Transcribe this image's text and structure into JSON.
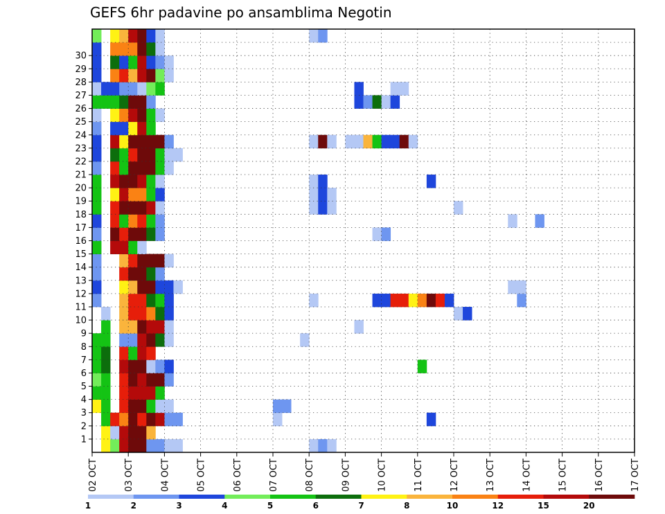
{
  "chart_data": {
    "type": "heatmap",
    "title": "GEFS 6hr padavine po ansamblima Negotin",
    "x_tick_labels": [
      "02 OCT",
      "03 OCT",
      "04 OCT",
      "05 OCT",
      "06 OCT",
      "07 OCT",
      "08 OCT",
      "09 OCT",
      "10 OCT",
      "11 OCT",
      "12 OCT",
      "13 OCT",
      "14 OCT",
      "15 OCT",
      "16 OCT",
      "17 OCT"
    ],
    "y_tick_labels": [
      "1",
      "2",
      "3",
      "4",
      "5",
      "6",
      "7",
      "8",
      "9",
      "10",
      "11",
      "12",
      "13",
      "14",
      "15",
      "16",
      "17",
      "18",
      "19",
      "20",
      "21",
      "22",
      "23",
      "24",
      "25",
      "26",
      "27",
      "28",
      "29",
      "30"
    ],
    "x_unit": "6-hour step from 02 OCT 00Z",
    "y_unit": "ensemble member",
    "grid": true,
    "colorbar": {
      "labels": [
        "1",
        "2",
        "3",
        "4",
        "5",
        "6",
        "7",
        "8",
        "10",
        "12",
        "15",
        "20"
      ],
      "colors": [
        "#b4c8f5",
        "#6e96f0",
        "#1e46dc",
        "#73ed5a",
        "#14c314",
        "#0c6e0c",
        "#fff214",
        "#fab43c",
        "#fa8214",
        "#e61e0a",
        "#b40a0a",
        "#6e0a0a"
      ]
    },
    "cells": [
      [
        0,
        1,
        6
      ],
      [
        0,
        2,
        3
      ],
      [
        0,
        3,
        10
      ],
      [
        0,
        4,
        11
      ],
      [
        0,
        5,
        11
      ],
      [
        0,
        6,
        1
      ],
      [
        0,
        7,
        1
      ],
      [
        0,
        8,
        0
      ],
      [
        0,
        9,
        0
      ],
      [
        0,
        24,
        0
      ],
      [
        0,
        25,
        1
      ],
      [
        0,
        26,
        0
      ],
      [
        1,
        1,
        6
      ],
      [
        1,
        2,
        0
      ],
      [
        1,
        3,
        10
      ],
      [
        1,
        4,
        11
      ],
      [
        1,
        5,
        11
      ],
      [
        1,
        6,
        7
      ],
      [
        2,
        1,
        4
      ],
      [
        2,
        2,
        9
      ],
      [
        2,
        3,
        8
      ],
      [
        2,
        4,
        11
      ],
      [
        2,
        5,
        9
      ],
      [
        2,
        6,
        11
      ],
      [
        2,
        7,
        10
      ],
      [
        2,
        8,
        1
      ],
      [
        2,
        9,
        1
      ],
      [
        2,
        20,
        0
      ],
      [
        2,
        37,
        2
      ],
      [
        3,
        0,
        6
      ],
      [
        3,
        1,
        4
      ],
      [
        3,
        3,
        9
      ],
      [
        3,
        4,
        11
      ],
      [
        3,
        5,
        11
      ],
      [
        3,
        6,
        4
      ],
      [
        3,
        7,
        0
      ],
      [
        3,
        8,
        0
      ],
      [
        3,
        20,
        1
      ],
      [
        3,
        21,
        1
      ],
      [
        4,
        0,
        4
      ],
      [
        4,
        1,
        4
      ],
      [
        4,
        3,
        9
      ],
      [
        4,
        4,
        10
      ],
      [
        4,
        5,
        10
      ],
      [
        4,
        6,
        10
      ],
      [
        4,
        7,
        4
      ],
      [
        5,
        0,
        3
      ],
      [
        5,
        1,
        4
      ],
      [
        5,
        3,
        9
      ],
      [
        5,
        4,
        11
      ],
      [
        5,
        5,
        10
      ],
      [
        5,
        6,
        11
      ],
      [
        5,
        7,
        11
      ],
      [
        5,
        8,
        1
      ],
      [
        6,
        0,
        4
      ],
      [
        6,
        1,
        5
      ],
      [
        6,
        3,
        10
      ],
      [
        6,
        4,
        11
      ],
      [
        6,
        5,
        11
      ],
      [
        6,
        6,
        0
      ],
      [
        6,
        7,
        1
      ],
      [
        6,
        8,
        2
      ],
      [
        6,
        36,
        4
      ],
      [
        7,
        0,
        4
      ],
      [
        7,
        1,
        5
      ],
      [
        7,
        3,
        9
      ],
      [
        7,
        4,
        4
      ],
      [
        7,
        5,
        10
      ],
      [
        7,
        6,
        9
      ],
      [
        8,
        0,
        4
      ],
      [
        8,
        1,
        4
      ],
      [
        8,
        3,
        1
      ],
      [
        8,
        4,
        1
      ],
      [
        8,
        5,
        10
      ],
      [
        8,
        6,
        11
      ],
      [
        8,
        7,
        5
      ],
      [
        8,
        8,
        0
      ],
      [
        8,
        23,
        0
      ],
      [
        9,
        1,
        4
      ],
      [
        9,
        3,
        7
      ],
      [
        9,
        4,
        7
      ],
      [
        9,
        5,
        11
      ],
      [
        9,
        6,
        10
      ],
      [
        9,
        7,
        10
      ],
      [
        9,
        8,
        0
      ],
      [
        9,
        29,
        0
      ],
      [
        10,
        1,
        0
      ],
      [
        10,
        3,
        7
      ],
      [
        10,
        4,
        9
      ],
      [
        10,
        5,
        9
      ],
      [
        10,
        6,
        8
      ],
      [
        10,
        7,
        5
      ],
      [
        10,
        8,
        2
      ],
      [
        10,
        40,
        0
      ],
      [
        10,
        41,
        2
      ],
      [
        11,
        0,
        1
      ],
      [
        11,
        3,
        7
      ],
      [
        11,
        4,
        9
      ],
      [
        11,
        5,
        9
      ],
      [
        11,
        6,
        5
      ],
      [
        11,
        7,
        4
      ],
      [
        11,
        8,
        2
      ],
      [
        11,
        24,
        0
      ],
      [
        11,
        31,
        2
      ],
      [
        11,
        32,
        2
      ],
      [
        11,
        33,
        9
      ],
      [
        11,
        34,
        9
      ],
      [
        11,
        35,
        6
      ],
      [
        11,
        36,
        8
      ],
      [
        11,
        37,
        11
      ],
      [
        11,
        38,
        9
      ],
      [
        11,
        39,
        2
      ],
      [
        11,
        47,
        1
      ],
      [
        12,
        0,
        2
      ],
      [
        12,
        3,
        6
      ],
      [
        12,
        4,
        7
      ],
      [
        12,
        5,
        11
      ],
      [
        12,
        6,
        11
      ],
      [
        12,
        7,
        2
      ],
      [
        12,
        8,
        2
      ],
      [
        12,
        9,
        0
      ],
      [
        12,
        46,
        0
      ],
      [
        12,
        47,
        0
      ],
      [
        13,
        0,
        1
      ],
      [
        13,
        3,
        9
      ],
      [
        13,
        4,
        11
      ],
      [
        13,
        5,
        11
      ],
      [
        13,
        6,
        5
      ],
      [
        13,
        7,
        1
      ],
      [
        14,
        0,
        1
      ],
      [
        14,
        3,
        7
      ],
      [
        14,
        4,
        9
      ],
      [
        14,
        5,
        11
      ],
      [
        14,
        6,
        11
      ],
      [
        14,
        7,
        11
      ],
      [
        14,
        8,
        0
      ],
      [
        15,
        0,
        4
      ],
      [
        15,
        2,
        10
      ],
      [
        15,
        3,
        10
      ],
      [
        15,
        4,
        4
      ],
      [
        15,
        5,
        0
      ],
      [
        16,
        0,
        1
      ],
      [
        16,
        2,
        11
      ],
      [
        16,
        3,
        9
      ],
      [
        16,
        4,
        11
      ],
      [
        16,
        5,
        11
      ],
      [
        16,
        6,
        5
      ],
      [
        16,
        7,
        1
      ],
      [
        16,
        31,
        0
      ],
      [
        16,
        32,
        1
      ],
      [
        17,
        0,
        2
      ],
      [
        17,
        2,
        9
      ],
      [
        17,
        3,
        4
      ],
      [
        17,
        4,
        8
      ],
      [
        17,
        5,
        9
      ],
      [
        17,
        6,
        4
      ],
      [
        17,
        7,
        1
      ],
      [
        17,
        46,
        0
      ],
      [
        17,
        49,
        1
      ],
      [
        18,
        0,
        4
      ],
      [
        18,
        2,
        9
      ],
      [
        18,
        3,
        11
      ],
      [
        18,
        4,
        11
      ],
      [
        18,
        5,
        11
      ],
      [
        18,
        6,
        10
      ],
      [
        18,
        7,
        0
      ],
      [
        18,
        24,
        0
      ],
      [
        18,
        25,
        2
      ],
      [
        18,
        26,
        0
      ],
      [
        18,
        40,
        0
      ],
      [
        19,
        0,
        4
      ],
      [
        19,
        2,
        6
      ],
      [
        19,
        3,
        10
      ],
      [
        19,
        4,
        8
      ],
      [
        19,
        5,
        8
      ],
      [
        19,
        6,
        4
      ],
      [
        19,
        7,
        2
      ],
      [
        19,
        24,
        0
      ],
      [
        19,
        25,
        2
      ],
      [
        19,
        26,
        0
      ],
      [
        20,
        0,
        4
      ],
      [
        20,
        2,
        10
      ],
      [
        20,
        3,
        11
      ],
      [
        20,
        4,
        11
      ],
      [
        20,
        5,
        10
      ],
      [
        20,
        6,
        4
      ],
      [
        20,
        7,
        0
      ],
      [
        20,
        24,
        0
      ],
      [
        20,
        25,
        2
      ],
      [
        20,
        37,
        2
      ],
      [
        21,
        0,
        1
      ],
      [
        21,
        2,
        9
      ],
      [
        21,
        3,
        4
      ],
      [
        21,
        4,
        11
      ],
      [
        21,
        5,
        11
      ],
      [
        21,
        6,
        11
      ],
      [
        21,
        7,
        4
      ],
      [
        21,
        8,
        0
      ],
      [
        22,
        0,
        2
      ],
      [
        22,
        2,
        5
      ],
      [
        22,
        3,
        4
      ],
      [
        22,
        4,
        9
      ],
      [
        22,
        5,
        11
      ],
      [
        22,
        6,
        11
      ],
      [
        22,
        7,
        4
      ],
      [
        22,
        8,
        0
      ],
      [
        22,
        9,
        0
      ],
      [
        23,
        0,
        2
      ],
      [
        23,
        2,
        10
      ],
      [
        23,
        3,
        6
      ],
      [
        23,
        4,
        11
      ],
      [
        23,
        5,
        11
      ],
      [
        23,
        6,
        11
      ],
      [
        23,
        7,
        11
      ],
      [
        23,
        8,
        1
      ],
      [
        23,
        24,
        0
      ],
      [
        23,
        25,
        11
      ],
      [
        23,
        26,
        0
      ],
      [
        23,
        28,
        0
      ],
      [
        23,
        29,
        0
      ],
      [
        23,
        30,
        7
      ],
      [
        23,
        31,
        4
      ],
      [
        23,
        32,
        2
      ],
      [
        23,
        33,
        2
      ],
      [
        23,
        34,
        11
      ],
      [
        23,
        35,
        0
      ],
      [
        24,
        0,
        1
      ],
      [
        24,
        2,
        2
      ],
      [
        24,
        3,
        2
      ],
      [
        24,
        4,
        6
      ],
      [
        24,
        5,
        10
      ],
      [
        24,
        6,
        4
      ],
      [
        25,
        0,
        0
      ],
      [
        25,
        2,
        6
      ],
      [
        25,
        3,
        8
      ],
      [
        25,
        4,
        10
      ],
      [
        25,
        5,
        11
      ],
      [
        25,
        6,
        4
      ],
      [
        25,
        7,
        0
      ],
      [
        26,
        0,
        4
      ],
      [
        26,
        1,
        4
      ],
      [
        26,
        2,
        4
      ],
      [
        26,
        3,
        5
      ],
      [
        26,
        4,
        11
      ],
      [
        26,
        5,
        11
      ],
      [
        26,
        6,
        1
      ],
      [
        26,
        29,
        2
      ],
      [
        26,
        30,
        1
      ],
      [
        26,
        31,
        5
      ],
      [
        26,
        32,
        0
      ],
      [
        26,
        33,
        2
      ],
      [
        27,
        0,
        0
      ],
      [
        27,
        1,
        2
      ],
      [
        27,
        2,
        2
      ],
      [
        27,
        3,
        1
      ],
      [
        27,
        4,
        1
      ],
      [
        27,
        5,
        0
      ],
      [
        27,
        6,
        3
      ],
      [
        27,
        7,
        4
      ],
      [
        27,
        29,
        2
      ],
      [
        27,
        33,
        0
      ],
      [
        27,
        34,
        0
      ],
      [
        28,
        0,
        2
      ],
      [
        28,
        2,
        8
      ],
      [
        28,
        3,
        9
      ],
      [
        28,
        4,
        7
      ],
      [
        28,
        5,
        10
      ],
      [
        28,
        6,
        11
      ],
      [
        28,
        7,
        3
      ],
      [
        28,
        8,
        0
      ],
      [
        29,
        0,
        2
      ],
      [
        29,
        2,
        5
      ],
      [
        29,
        3,
        2
      ],
      [
        29,
        4,
        4
      ],
      [
        29,
        5,
        10
      ],
      [
        29,
        6,
        2
      ],
      [
        29,
        7,
        1
      ],
      [
        29,
        8,
        0
      ],
      [
        30,
        0,
        2
      ],
      [
        30,
        2,
        8
      ],
      [
        30,
        3,
        8
      ],
      [
        30,
        4,
        8
      ],
      [
        30,
        5,
        11
      ],
      [
        30,
        6,
        5
      ],
      [
        30,
        7,
        0
      ],
      [
        31,
        0,
        3
      ],
      [
        31,
        2,
        6
      ],
      [
        31,
        3,
        7
      ],
      [
        31,
        4,
        10
      ],
      [
        31,
        5,
        11
      ],
      [
        31,
        6,
        2
      ],
      [
        31,
        7,
        0
      ],
      [
        31,
        24,
        0
      ],
      [
        31,
        25,
        1
      ]
    ]
  }
}
